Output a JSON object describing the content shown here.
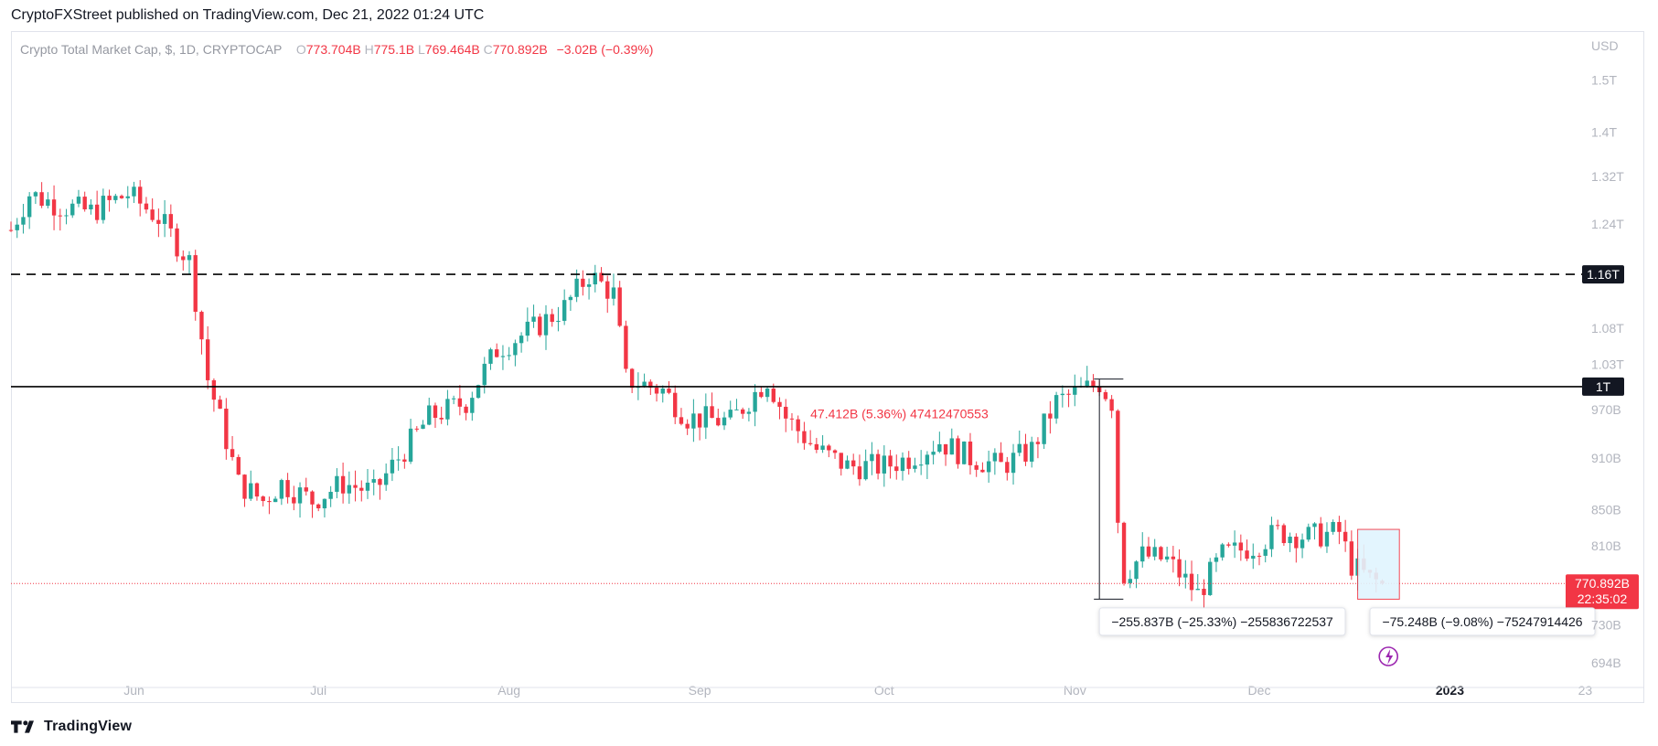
{
  "header": {
    "text": "CryptoFXStreet published on TradingView.com, Dec 21, 2022 01:24 UTC"
  },
  "legend": {
    "symbol": "Crypto Total Market Cap, $, 1D, CRYPTOCAP",
    "o_label": "O",
    "o_value": "773.704B",
    "h_label": "H",
    "h_value": "775.1B",
    "l_label": "L",
    "l_value": "769.464B",
    "c_label": "C",
    "c_value": "770.892B",
    "change": "−3.02B (−0.39%)"
  },
  "footer": {
    "brand": "TradingView"
  },
  "colors": {
    "up": "#26a69a",
    "down": "#f23645",
    "level_line": "#000000",
    "price_line": "#f23645",
    "axis_text": "#b2b5be",
    "highlight_box": "#e1f5fe"
  },
  "chart_data": {
    "type": "candlestick",
    "title": "Crypto Total Market Cap, $, 1D, CRYPTOCAP",
    "y_scale": "log",
    "y_unit": "USD",
    "ylim": [
      680,
      1600
    ],
    "y_ticks": [
      {
        "value": 1500,
        "label": "1.5T"
      },
      {
        "value": 1400,
        "label": "1.4T"
      },
      {
        "value": 1320,
        "label": "1.32T"
      },
      {
        "value": 1240,
        "label": "1.24T"
      },
      {
        "value": 1080,
        "label": "1.08T"
      },
      {
        "value": 1030,
        "label": "1.03T"
      },
      {
        "value": 970,
        "label": "970B"
      },
      {
        "value": 910,
        "label": "910B"
      },
      {
        "value": 850,
        "label": "850B"
      },
      {
        "value": 810,
        "label": "810B"
      },
      {
        "value": 730,
        "label": "730B"
      },
      {
        "value": 694,
        "label": "694B"
      }
    ],
    "x_ticks": [
      {
        "date": "2022-06-01",
        "label": "Jun"
      },
      {
        "date": "2022-07-01",
        "label": "Jul"
      },
      {
        "date": "2022-08-01",
        "label": "Aug"
      },
      {
        "date": "2022-09-01",
        "label": "Sep"
      },
      {
        "date": "2022-10-01",
        "label": "Oct"
      },
      {
        "date": "2022-11-01",
        "label": "Nov"
      },
      {
        "date": "2022-12-01",
        "label": "Dec"
      },
      {
        "date": "2023-01-01",
        "label": "2023",
        "bold": true
      },
      {
        "date": "2023-01-23",
        "label": "23"
      }
    ],
    "x_range": [
      "2022-05-12",
      "2023-01-28"
    ],
    "horizontal_levels": [
      {
        "value": 1160,
        "label": "1.16T",
        "style": "dashed"
      },
      {
        "value": 1000,
        "label": "1T",
        "style": "solid"
      }
    ],
    "last_price": {
      "value": 770.892,
      "label": "770.892B",
      "countdown": "22:35:02"
    },
    "measurements": [
      {
        "text": "47.412B (5.36%) 47412470553",
        "from_date": "2022-11-06",
        "to_date": "2022-11-06",
        "from": 1001,
        "to": 1001,
        "color": "#f23645",
        "label_date": "2022-09-19",
        "label_value": 965,
        "boxed": false
      },
      {
        "text": "−255.837B (−25.33%) −255836722537",
        "from_date": "2022-11-05",
        "to_date": "2022-11-08",
        "from": 1010,
        "to": 755,
        "color": "#131722",
        "label_date": "2022-11-05",
        "label_value": 733,
        "boxed": true
      },
      {
        "text": "−75.248B (−9.08%) −75247914426",
        "from_date": "2022-12-17",
        "to_date": "2022-12-22",
        "from": 828,
        "to": 755,
        "color": "#131722",
        "label_date": "2022-12-19",
        "label_value": 733,
        "boxed": true
      }
    ],
    "candles": []
  }
}
